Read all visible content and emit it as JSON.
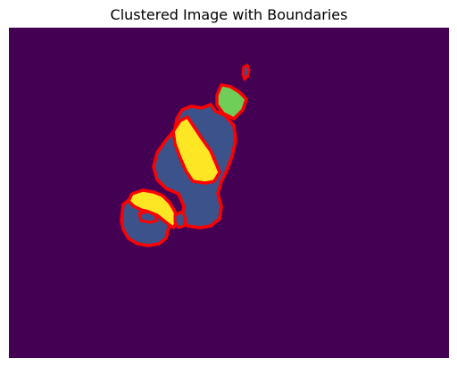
{
  "figure": {
    "title": "Clustered Image with Boundaries"
  },
  "colors": {
    "background": "#440154",
    "cluster_blue": "#3b528b",
    "cluster_yellow": "#fde725",
    "cluster_green": "#6ece58",
    "boundary": "#ff0000"
  }
}
